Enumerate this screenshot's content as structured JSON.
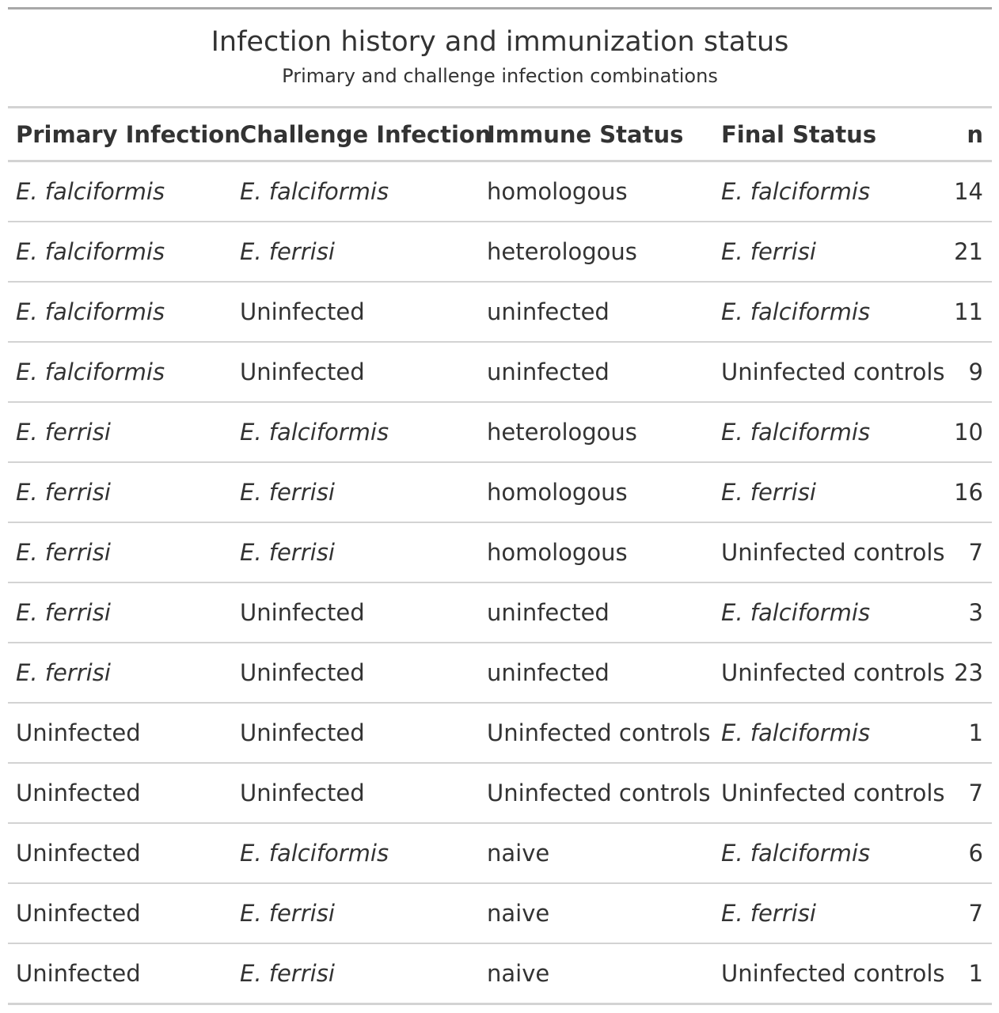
{
  "table": {
    "title": "Infection history and immunization status",
    "subtitle": "Primary and challenge infection combinations",
    "columns": [
      "Primary Infection",
      "Challenge Infection",
      "Immune Status",
      "Final Status",
      "n"
    ],
    "rows": [
      [
        "E. falciformis",
        "E. falciformis",
        "homologous",
        "E. falciformis",
        "14"
      ],
      [
        "E. falciformis",
        "E. ferrisi",
        "heterologous",
        "E. ferrisi",
        "21"
      ],
      [
        "E. falciformis",
        "Uninfected",
        "uninfected",
        "E. falciformis",
        "11"
      ],
      [
        "E. falciformis",
        "Uninfected",
        "uninfected",
        "Uninfected controls",
        "9"
      ],
      [
        "E. ferrisi",
        "E. falciformis",
        "heterologous",
        "E. falciformis",
        "10"
      ],
      [
        "E. ferrisi",
        "E. ferrisi",
        "homologous",
        "E. ferrisi",
        "16"
      ],
      [
        "E. ferrisi",
        "E. ferrisi",
        "homologous",
        "Uninfected controls",
        "7"
      ],
      [
        "E. ferrisi",
        "Uninfected",
        "uninfected",
        "E. falciformis",
        "3"
      ],
      [
        "E. ferrisi",
        "Uninfected",
        "uninfected",
        "Uninfected controls",
        "23"
      ],
      [
        "Uninfected",
        "Uninfected",
        "Uninfected controls",
        "E. falciformis",
        "1"
      ],
      [
        "Uninfected",
        "Uninfected",
        "Uninfected controls",
        "Uninfected controls",
        "7"
      ],
      [
        "Uninfected",
        "E. falciformis",
        "naive",
        "E. falciformis",
        "6"
      ],
      [
        "Uninfected",
        "E. ferrisi",
        "naive",
        "E. ferrisi",
        "7"
      ],
      [
        "Uninfected",
        "E. ferrisi",
        "naive",
        "Uninfected controls",
        "1"
      ]
    ]
  }
}
